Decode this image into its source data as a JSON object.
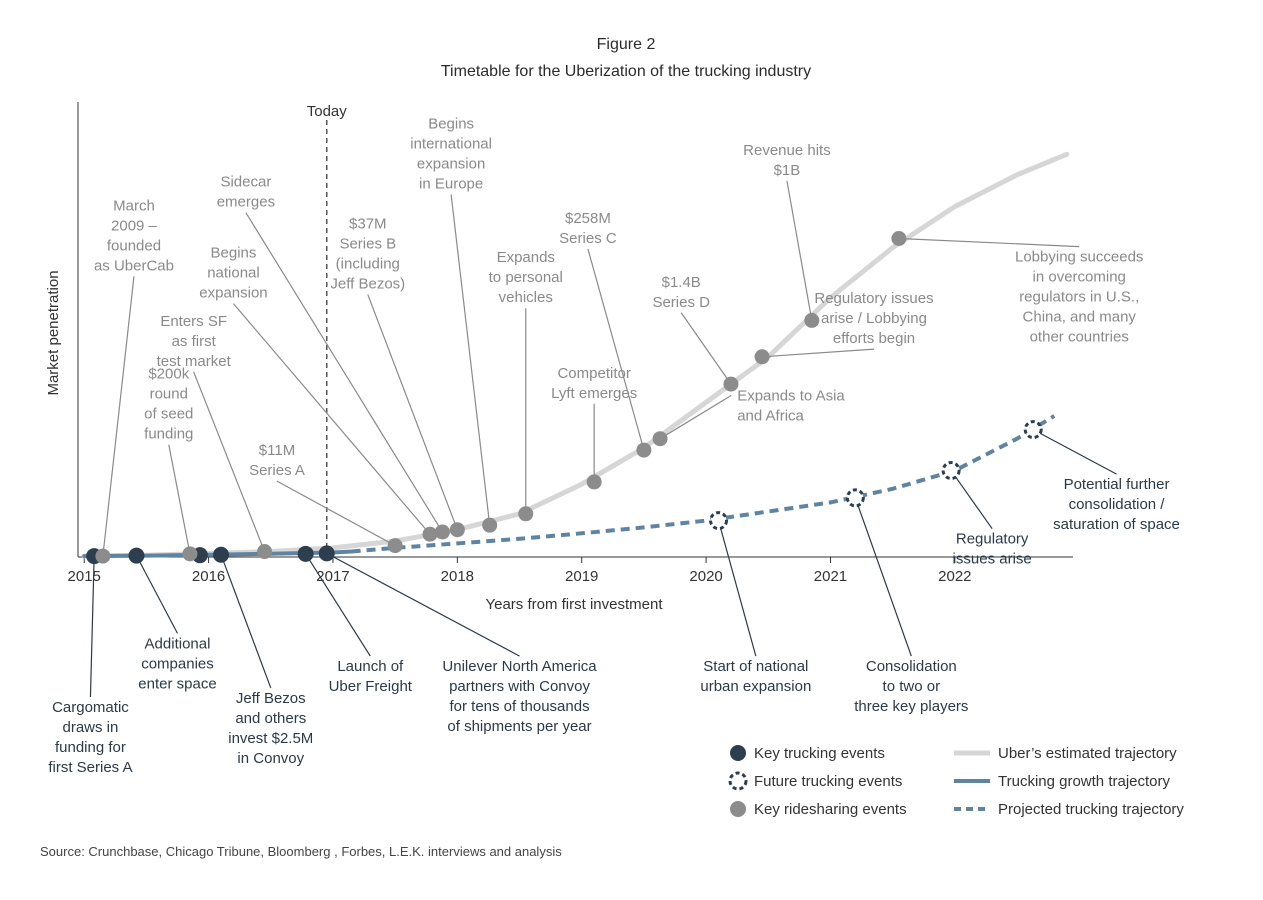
{
  "title": "Figure 2",
  "subtitle": "Timetable for the Uberization of the trucking industry",
  "source": "Source: Crunchbase, Chicago Tribune, Bloomberg , Forbes, L.E.K. interviews and analysis",
  "colors": {
    "uber_line": "#d6d6d6",
    "uber_point": "#8c8c8c",
    "trucking": "#5f84a2",
    "key_event": "#2d3e4e",
    "leader_gray": "#8a8a8a",
    "leader_dark": "#2a3a48"
  },
  "chart_data": {
    "type": "line",
    "xlabel": "Years from first investment",
    "ylabel": "Market penetration",
    "x_ticks": [
      "2015",
      "2016",
      "2017",
      "2018",
      "2019",
      "2020",
      "2021",
      "2022"
    ],
    "xlim": [
      2014.95,
      2022.95
    ],
    "ylim": [
      0,
      1
    ],
    "today_label": "Today",
    "today_x": 2016.95,
    "series": [
      {
        "name": "Uber's estimated trajectory",
        "style": "solid-light",
        "x": [
          2015.0,
          2015.5,
          2016.0,
          2016.5,
          2017.0,
          2017.5,
          2018.0,
          2018.5,
          2019.0,
          2019.5,
          2020.0,
          2020.5,
          2021.0,
          2021.5,
          2022.0,
          2022.5,
          2022.9
        ],
        "y": [
          0.002,
          0.004,
          0.008,
          0.012,
          0.02,
          0.035,
          0.06,
          0.095,
          0.16,
          0.24,
          0.34,
          0.44,
          0.57,
          0.68,
          0.77,
          0.84,
          0.885
        ]
      },
      {
        "name": "Trucking growth trajectory",
        "style": "solid",
        "x": [
          2015.0,
          2015.5,
          2016.0,
          2016.5,
          2017.0,
          2017.15
        ],
        "y": [
          0.002,
          0.003,
          0.005,
          0.007,
          0.01,
          0.012
        ]
      },
      {
        "name": "Projected trucking trajectory",
        "style": "dashed",
        "x": [
          2017.15,
          2017.5,
          2018.0,
          2018.5,
          2019.0,
          2019.5,
          2020.0,
          2020.5,
          2021.0,
          2021.5,
          2022.0,
          2022.5,
          2022.8
        ],
        "y": [
          0.012,
          0.02,
          0.03,
          0.04,
          0.052,
          0.065,
          0.08,
          0.1,
          0.12,
          0.15,
          0.19,
          0.26,
          0.31
        ]
      }
    ],
    "points": [
      {
        "kind": "key",
        "x": 2015.08,
        "y": 0.002,
        "label": [
          "Cargomatic",
          "draws in",
          "funding for",
          "first Series A"
        ],
        "lx": 2015.05,
        "ly": -0.31,
        "anchor": "middle"
      },
      {
        "kind": "key",
        "x": 2015.42,
        "y": 0.003,
        "label": [
          "Additional",
          "companies",
          "enter space"
        ],
        "lx": 2015.75,
        "ly": -0.17,
        "anchor": "middle"
      },
      {
        "kind": "key",
        "x": 2015.93,
        "y": 0.004,
        "label": null
      },
      {
        "kind": "key",
        "x": 2016.1,
        "y": 0.005,
        "label": [
          "Jeff Bezos",
          "and others",
          "invest $2.5M",
          "in Convoy"
        ],
        "lx": 2016.5,
        "ly": -0.29,
        "anchor": "middle"
      },
      {
        "kind": "key",
        "x": 2016.78,
        "y": 0.007,
        "label": [
          "Launch of",
          "Uber Freight"
        ],
        "lx": 2017.3,
        "ly": -0.22,
        "anchor": "middle"
      },
      {
        "kind": "key",
        "x": 2016.95,
        "y": 0.008,
        "label": [
          "Unilever North America",
          "partners with Convoy",
          "for tens of thousands",
          "of shipments per year"
        ],
        "lx": 2018.5,
        "ly": -0.22,
        "anchor": "middle"
      },
      {
        "kind": "future",
        "x": 2020.1,
        "y": 0.08,
        "label": [
          "Start of national",
          "urban expansion"
        ],
        "lx": 2020.4,
        "ly": -0.22,
        "anchor": "middle"
      },
      {
        "kind": "future",
        "x": 2021.2,
        "y": 0.13,
        "label": [
          "Consolidation",
          "to two or",
          "three key players"
        ],
        "lx": 2021.65,
        "ly": -0.22,
        "anchor": "middle"
      },
      {
        "kind": "future",
        "x": 2021.97,
        "y": 0.19,
        "label": [
          "Regulatory",
          "issues arise"
        ],
        "lx": 2022.3,
        "ly": 0.06,
        "anchor": "middle"
      },
      {
        "kind": "future",
        "x": 2022.63,
        "y": 0.28,
        "label": [
          "Potential further",
          "consolidation /",
          "saturation of space"
        ],
        "lx": 2023.3,
        "ly": 0.18,
        "anchor": "middle"
      },
      {
        "kind": "ride",
        "x": 2015.15,
        "y": 0.002,
        "label": [
          "March",
          "2009 –",
          "founded",
          "as UberCab"
        ],
        "lx": 2015.4,
        "ly": 0.63,
        "anchor": "middle"
      },
      {
        "kind": "ride",
        "x": 2015.85,
        "y": 0.007,
        "label": [
          "$200k",
          "round",
          "of seed",
          "funding"
        ],
        "lx": 2015.68,
        "ly": 0.26,
        "anchor": "middle"
      },
      {
        "kind": "ride",
        "x": 2016.45,
        "y": 0.012,
        "label": [
          "Enters SF",
          "as first",
          "test market"
        ],
        "lx": 2015.88,
        "ly": 0.42,
        "anchor": "middle"
      },
      {
        "kind": "ride",
        "x": 2017.5,
        "y": 0.025,
        "label": [
          "$11M",
          "Series A"
        ],
        "lx": 2016.55,
        "ly": 0.18,
        "anchor": "middle"
      },
      {
        "kind": "ride",
        "x": 2017.78,
        "y": 0.05,
        "label": [
          "Begins",
          "national",
          "expansion"
        ],
        "lx": 2016.2,
        "ly": 0.57,
        "anchor": "middle"
      },
      {
        "kind": "ride",
        "x": 2017.88,
        "y": 0.055,
        "label": [
          "Sidecar",
          "emerges"
        ],
        "lx": 2016.3,
        "ly": 0.77,
        "anchor": "middle"
      },
      {
        "kind": "ride",
        "x": 2018.0,
        "y": 0.06,
        "label": [
          "$37M",
          "Series B",
          "(including",
          "Jeff Bezos)"
        ],
        "lx": 2017.28,
        "ly": 0.59,
        "anchor": "middle"
      },
      {
        "kind": "ride",
        "x": 2018.26,
        "y": 0.07,
        "label": [
          "Begins",
          "international",
          "expansion",
          "in Europe"
        ],
        "lx": 2017.95,
        "ly": 0.81,
        "anchor": "middle"
      },
      {
        "kind": "ride",
        "x": 2018.55,
        "y": 0.095,
        "label": [
          "Expands",
          "to personal",
          "vehicles"
        ],
        "lx": 2018.55,
        "ly": 0.56,
        "anchor": "middle"
      },
      {
        "kind": "ride",
        "x": 2019.1,
        "y": 0.165,
        "label": [
          "Competitor",
          "Lyft emerges"
        ],
        "lx": 2019.1,
        "ly": 0.35,
        "anchor": "middle"
      },
      {
        "kind": "ride",
        "x": 2019.5,
        "y": 0.235,
        "label": [
          "$258M",
          "Series C"
        ],
        "lx": 2019.05,
        "ly": 0.69,
        "anchor": "middle"
      },
      {
        "kind": "ride",
        "x": 2019.63,
        "y": 0.26,
        "label": [
          "Expands to Asia",
          "and Africa"
        ],
        "lx": 2020.25,
        "ly": 0.3,
        "anchor": "start"
      },
      {
        "kind": "ride",
        "x": 2020.2,
        "y": 0.38,
        "label": [
          "$1.4B",
          "Series D"
        ],
        "lx": 2019.8,
        "ly": 0.55,
        "anchor": "middle"
      },
      {
        "kind": "ride",
        "x": 2020.45,
        "y": 0.44,
        "label": [
          "Regulatory issues",
          "arise / Lobbying",
          "efforts begin"
        ],
        "lx": 2021.35,
        "ly": 0.47,
        "anchor": "middle"
      },
      {
        "kind": "ride",
        "x": 2020.85,
        "y": 0.52,
        "label": [
          "Revenue hits",
          "$1B"
        ],
        "lx": 2020.65,
        "ly": 0.84,
        "anchor": "middle"
      },
      {
        "kind": "ride",
        "x": 2021.55,
        "y": 0.7,
        "label": [
          "Lobbying succeeds",
          "in overcoming",
          "regulators in U.S.,",
          "China, and many",
          "other countries"
        ],
        "lx": 2023.0,
        "ly": 0.68,
        "anchor": "middle"
      }
    ],
    "legend": [
      {
        "kind": "key",
        "label": "Key trucking events"
      },
      {
        "kind": "future",
        "label": "Future trucking events"
      },
      {
        "kind": "ride",
        "label": "Key ridesharing events"
      },
      {
        "kind": "uber-line",
        "label": "Uber’s estimated trajectory"
      },
      {
        "kind": "truck-line",
        "label": "Trucking growth trajectory"
      },
      {
        "kind": "proj-line",
        "label": "Projected trucking trajectory"
      }
    ]
  }
}
